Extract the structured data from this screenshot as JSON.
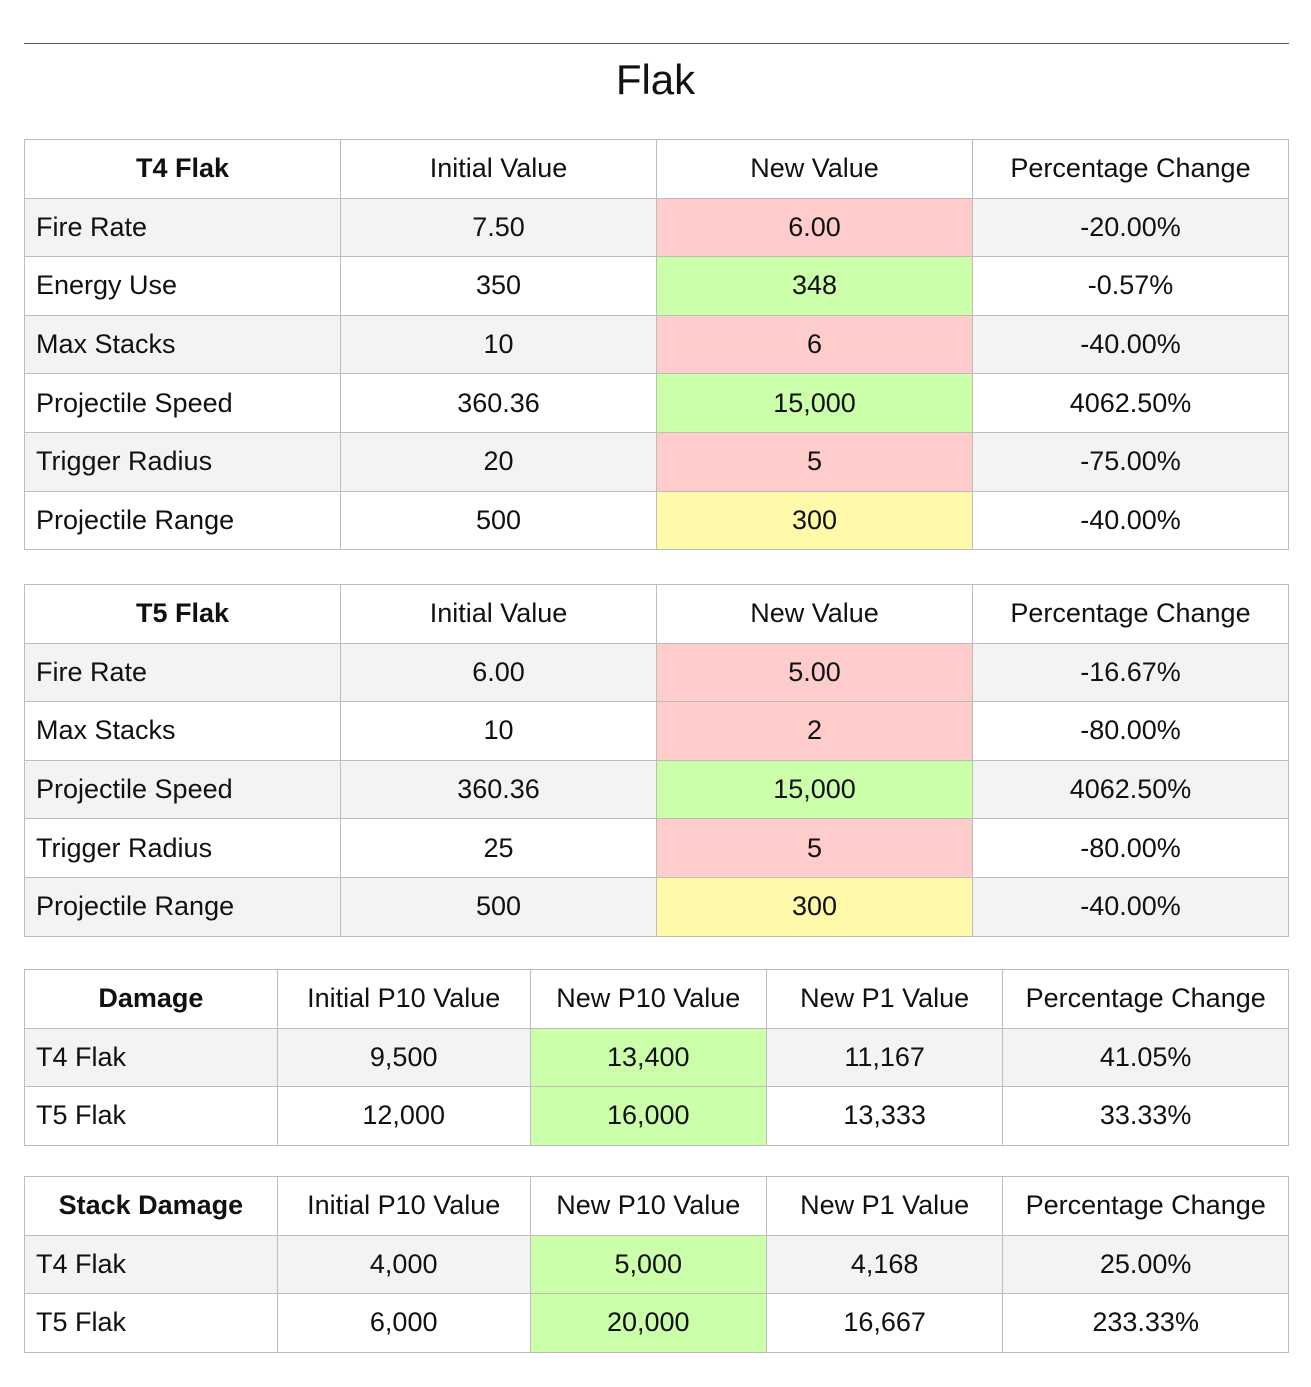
{
  "title": "Flak",
  "colors": {
    "red": "#ffcccc",
    "green": "#ccffaa",
    "yellow": "#fff9aa",
    "stripe": "#f3f3f3",
    "border": "#bdbdbd"
  },
  "t4": {
    "headers": [
      "T4 Flak",
      "Initial Value",
      "New Value",
      "Percentage Change"
    ],
    "rows": [
      {
        "label": "Fire Rate",
        "initial": "7.50",
        "new": "6.00",
        "change": "-20.00%",
        "highlight": "red"
      },
      {
        "label": "Energy Use",
        "initial": "350",
        "new": "348",
        "change": "-0.57%",
        "highlight": "green"
      },
      {
        "label": "Max Stacks",
        "initial": "10",
        "new": "6",
        "change": "-40.00%",
        "highlight": "red"
      },
      {
        "label": "Projectile Speed",
        "initial": "360.36",
        "new": "15,000",
        "change": "4062.50%",
        "highlight": "green"
      },
      {
        "label": "Trigger Radius",
        "initial": "20",
        "new": "5",
        "change": "-75.00%",
        "highlight": "red"
      },
      {
        "label": "Projectile Range",
        "initial": "500",
        "new": "300",
        "change": "-40.00%",
        "highlight": "yellow"
      }
    ]
  },
  "t5": {
    "headers": [
      "T5 Flak",
      "Initial Value",
      "New Value",
      "Percentage Change"
    ],
    "rows": [
      {
        "label": "Fire Rate",
        "initial": "6.00",
        "new": "5.00",
        "change": "-16.67%",
        "highlight": "red"
      },
      {
        "label": "Max Stacks",
        "initial": "10",
        "new": "2",
        "change": "-80.00%",
        "highlight": "red"
      },
      {
        "label": "Projectile Speed",
        "initial": "360.36",
        "new": "15,000",
        "change": "4062.50%",
        "highlight": "green"
      },
      {
        "label": "Trigger Radius",
        "initial": "25",
        "new": "5",
        "change": "-80.00%",
        "highlight": "red"
      },
      {
        "label": "Projectile Range",
        "initial": "500",
        "new": "300",
        "change": "-40.00%",
        "highlight": "yellow"
      }
    ]
  },
  "damage": {
    "headers": [
      "Damage",
      "Initial P10 Value",
      "New P10 Value",
      "New P1 Value",
      "Percentage Change"
    ],
    "rows": [
      {
        "label": "T4 Flak",
        "initial_p10": "9,500",
        "new_p10": "13,400",
        "new_p1": "11,167",
        "change": "41.05%",
        "highlight": "green"
      },
      {
        "label": "T5 Flak",
        "initial_p10": "12,000",
        "new_p10": "16,000",
        "new_p1": "13,333",
        "change": "33.33%",
        "highlight": "green"
      }
    ]
  },
  "stack_damage": {
    "headers": [
      "Stack Damage",
      "Initial P10 Value",
      "New P10 Value",
      "New P1 Value",
      "Percentage Change"
    ],
    "rows": [
      {
        "label": "T4 Flak",
        "initial_p10": "4,000",
        "new_p10": "5,000",
        "new_p1": "4,168",
        "change": "25.00%",
        "highlight": "green"
      },
      {
        "label": "T5 Flak",
        "initial_p10": "6,000",
        "new_p10": "20,000",
        "new_p1": "16,667",
        "change": "233.33%",
        "highlight": "green"
      }
    ]
  }
}
